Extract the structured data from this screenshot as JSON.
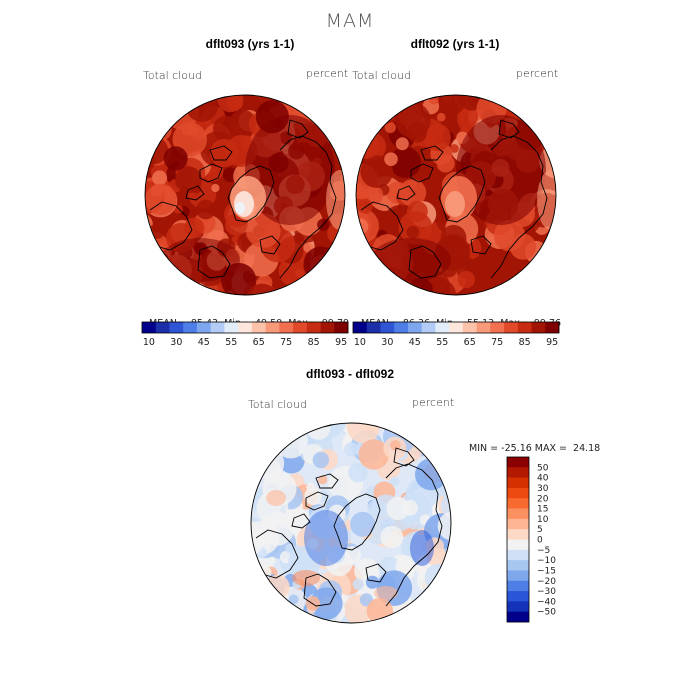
{
  "page": {
    "title": "MAM"
  },
  "chart_data": [
    {
      "type": "heatmap",
      "title": "dflt093 (yrs 1-1)",
      "field_label": "Total cloud",
      "units": "percent",
      "stats": {
        "mean": "85.43",
        "min": "49.50",
        "max": "99.79"
      },
      "colorbar": {
        "ticks": [
          "10",
          "30",
          "45",
          "55",
          "65",
          "75",
          "85",
          "95"
        ],
        "colors": [
          "#00008b",
          "#1c2fa8",
          "#2f55d4",
          "#4f7fe6",
          "#7da6ef",
          "#b3ccf5",
          "#e3edfa",
          "#fde6dc",
          "#fcc2aa",
          "#f89a7a",
          "#f1704f",
          "#e04a2b",
          "#c72c12",
          "#a21505",
          "#7e0000"
        ]
      },
      "map": {
        "projection": "north-polar-stereographic",
        "dominant": "high cloud over oceans (85-99%)",
        "low_region": "Greenland interior near 50-60%"
      }
    },
    {
      "type": "heatmap",
      "title": "dflt092 (yrs 1-1)",
      "field_label": "Total cloud",
      "units": "percent",
      "stats": {
        "mean": "86.36",
        "min": "55.13",
        "max": "99.76"
      },
      "colorbar": {
        "ticks": [
          "10",
          "30",
          "45",
          "55",
          "65",
          "75",
          "85",
          "95"
        ],
        "colors": [
          "#00008b",
          "#1c2fa8",
          "#2f55d4",
          "#4f7fe6",
          "#7da6ef",
          "#b3ccf5",
          "#e3edfa",
          "#fde6dc",
          "#fcc2aa",
          "#f89a7a",
          "#f1704f",
          "#e04a2b",
          "#c72c12",
          "#a21505",
          "#7e0000"
        ]
      },
      "map": {
        "projection": "north-polar-stereographic",
        "dominant": "high cloud over oceans (85-99%)",
        "low_region": "Greenland interior near 60-70%"
      }
    },
    {
      "type": "heatmap",
      "title": "dflt093 - dflt092",
      "field_label": "Total cloud",
      "units": "percent",
      "stats": {
        "min": "-25.16",
        "max": "24.18"
      },
      "colorbar": {
        "orientation": "vertical",
        "ticks": [
          "50",
          "40",
          "30",
          "20",
          "15",
          "10",
          "5",
          "0",
          "−5",
          "−10",
          "−15",
          "−20",
          "−30",
          "−40",
          "−50"
        ],
        "colors": [
          "#8b0000",
          "#b31800",
          "#d43000",
          "#ec4a10",
          "#f76a30",
          "#fb9060",
          "#fdb594",
          "#fdd8c4",
          "#f2f2f2",
          "#cfe0f7",
          "#a8c6f2",
          "#7ea7ec",
          "#4f7fe6",
          "#2a55d8",
          "#1432b8",
          "#00008b"
        ]
      },
      "map": {
        "projection": "north-polar-stereographic",
        "dominant": "small differences mostly within -5 to +5",
        "negative_region": "Greenland and northern Siberia to about -15",
        "positive_region": "scattered patches near +5 to +15"
      }
    }
  ]
}
